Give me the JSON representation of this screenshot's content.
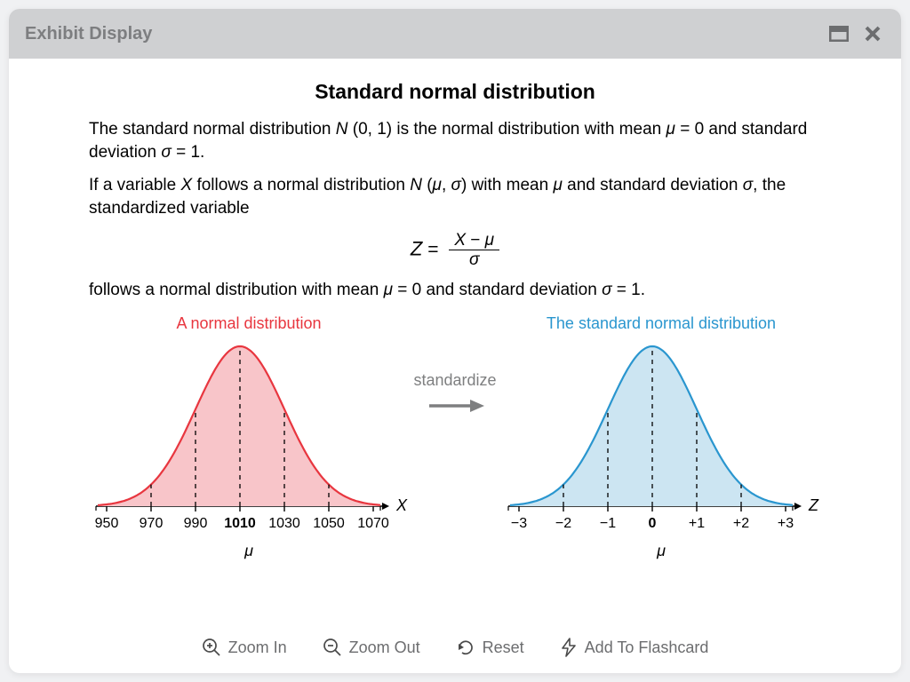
{
  "window": {
    "title": "Exhibit Display"
  },
  "heading": "Standard normal distribution",
  "para1_a": "The standard normal distribution ",
  "para1_b": " (0, 1) is the normal distribution with mean ",
  "para1_c": " = 0 and standard deviation ",
  "para1_d": " = 1.",
  "N": "N",
  "mu": "μ",
  "sigma": "σ",
  "para2_a": "If a variable ",
  "X": "X",
  "para2_b": " follows a normal distribution ",
  "para2_c": " (",
  "para2_d": ", ",
  "para2_e": ") with mean ",
  "para2_f": " and standard deviation ",
  "para2_g": ", the standardized variable",
  "formula": {
    "Z": "Z",
    "eq": " = ",
    "num_a": "X",
    "num_b": " − ",
    "num_c": "μ",
    "den": "σ"
  },
  "para3_a": "follows a normal distribution with mean ",
  "para3_b": " = 0 and standard deviation ",
  "para3_c": " = 1.",
  "arrow_label": "standardize",
  "chart_left": {
    "title": "A normal distribution",
    "title_color": "#e8363f",
    "curve_color": "#e8363f",
    "fill_color": "#f8c5c9",
    "axis_var": "X",
    "ticks": [
      "950",
      "970",
      "990",
      "1010",
      "1030",
      "1050",
      "1070"
    ],
    "bold_tick_index": 3,
    "mu_label": "μ",
    "background": "#ffffff",
    "font_size_ticks": 16,
    "font_size_title": 18,
    "curve_width": 2.2
  },
  "chart_right": {
    "title": "The standard normal distribution",
    "title_color": "#2a96cf",
    "curve_color": "#2a96cf",
    "fill_color": "#cce5f2",
    "axis_var": "Z",
    "ticks": [
      "−3",
      "−2",
      "−1",
      "0",
      "+1",
      "+2",
      "+3"
    ],
    "bold_tick_index": 3,
    "mu_label": "μ",
    "background": "#ffffff",
    "font_size_ticks": 16,
    "font_size_title": 18,
    "curve_width": 2.2
  },
  "toolbar": {
    "zoom_in": "Zoom In",
    "zoom_out": "Zoom Out",
    "reset": "Reset",
    "flashcard": "Add To Flashcard"
  },
  "colors": {
    "titlebar_bg": "#cfd0d2",
    "titlebar_text": "#7d7e80",
    "body_text": "#020202",
    "toolbar_text": "#6c6d6f",
    "arrow_text": "#7e7f80"
  }
}
